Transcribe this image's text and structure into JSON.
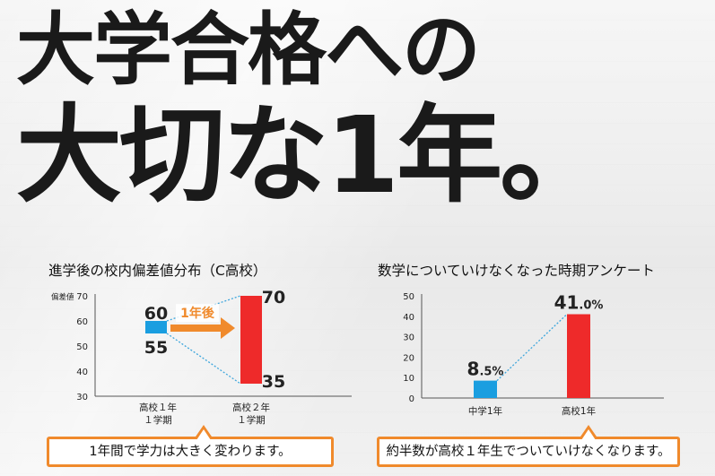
{
  "headline": {
    "line1": "大学合格への",
    "line2": "大切な1年。"
  },
  "chart_data": [
    {
      "type": "bar",
      "title": "進学後の校内偏差値分布（C高校）",
      "ylabel": "偏差値",
      "ylim": [
        30,
        70
      ],
      "yticks": [
        30,
        40,
        50,
        60,
        70
      ],
      "categories": [
        "高校１年\n１学期",
        "高校２年\n１学期"
      ],
      "ranges": [
        {
          "low": 55,
          "high": 60,
          "low_label": "55",
          "high_label": "60",
          "color": "#1a9ee0"
        },
        {
          "low": 35,
          "high": 70,
          "low_label": "35",
          "high_label": "70",
          "color": "#ee2a2a"
        }
      ],
      "arrow_label": "1年後",
      "arrow_color": "#f08a2c"
    },
    {
      "type": "bar",
      "title": "数学についていけなくなった時期アンケート",
      "ylim": [
        0,
        50
      ],
      "yticks": [
        0,
        10,
        20,
        30,
        40,
        50
      ],
      "categories": [
        "中学1年",
        "高校1年"
      ],
      "values": [
        8.5,
        41.0
      ],
      "value_labels": [
        {
          "main": "8",
          "small": ".5%"
        },
        {
          "main": "41",
          "small": ".0%"
        }
      ],
      "colors": [
        "#1a9ee0",
        "#ee2a2a"
      ]
    }
  ],
  "callouts": {
    "left": "1年間で学力は大きく変わります。",
    "right": "約半数が高校１年生でついていけなくなります。"
  },
  "colors": {
    "blue": "#1a9ee0",
    "red": "#ee2a2a",
    "orange": "#f08a2c",
    "dotted": "#3ea6dc"
  }
}
